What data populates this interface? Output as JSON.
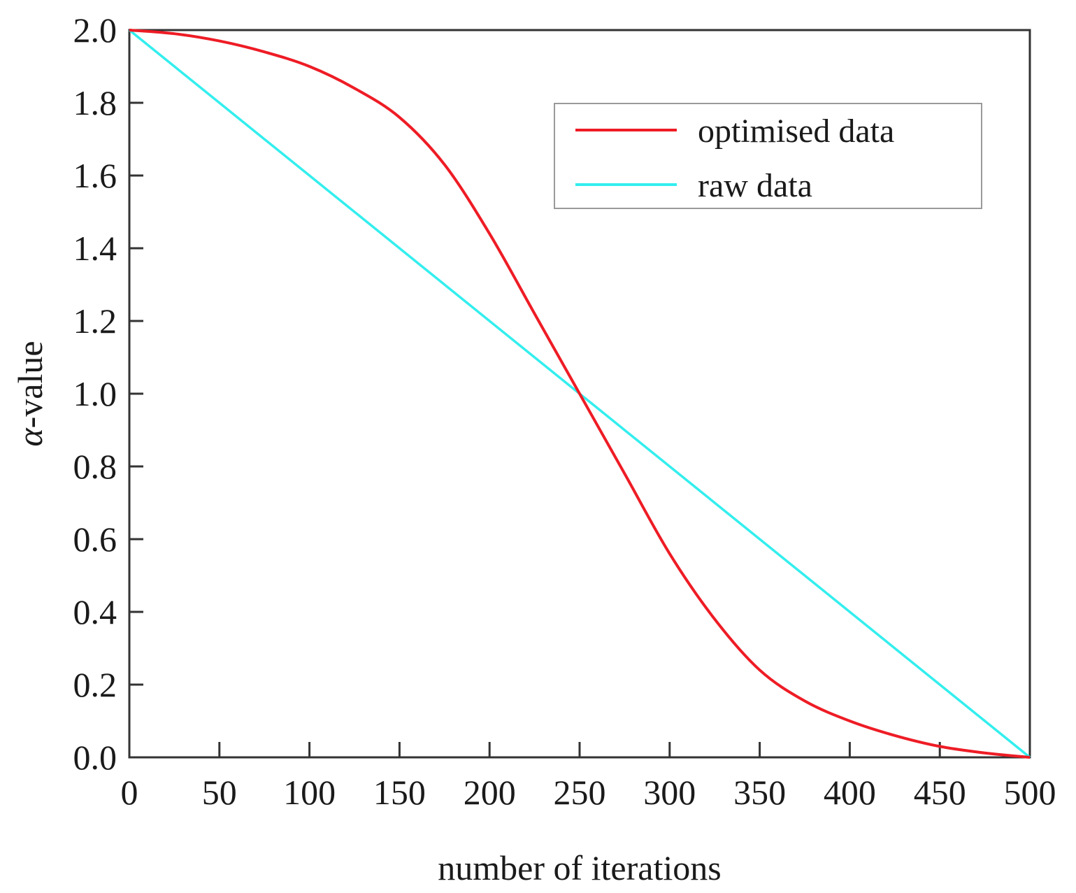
{
  "chart_data": {
    "type": "line",
    "title": "",
    "xlabel": "number of iterations",
    "ylabel_symbol": "α",
    "ylabel_suffix": "-value",
    "xlim": [
      0,
      500
    ],
    "ylim": [
      0,
      2.0
    ],
    "xticks": [
      0,
      50,
      100,
      150,
      200,
      250,
      300,
      350,
      400,
      450,
      500
    ],
    "xtick_labels": [
      "0",
      "50",
      "100",
      "150",
      "200",
      "250",
      "300",
      "350",
      "400",
      "450",
      "500"
    ],
    "yticks": [
      0,
      0.2,
      0.4,
      0.6,
      0.8,
      1.0,
      1.2,
      1.4,
      1.6,
      1.8,
      2.0
    ],
    "ytick_labels": [
      "0.0",
      "0.2",
      "0.4",
      "0.6",
      "0.8",
      "1.0",
      "1.2",
      "1.4",
      "1.6",
      "1.8",
      "2.0"
    ],
    "grid": false,
    "legend_position": "top-right",
    "series": [
      {
        "name": "optimised data",
        "color": "#ee1c25",
        "x": [
          0,
          25,
          50,
          75,
          100,
          125,
          150,
          175,
          200,
          225,
          250,
          275,
          300,
          325,
          350,
          375,
          400,
          425,
          450,
          475,
          500
        ],
        "y": [
          2.0,
          1.99,
          1.97,
          1.94,
          1.9,
          1.84,
          1.76,
          1.63,
          1.44,
          1.22,
          1.0,
          0.78,
          0.56,
          0.38,
          0.24,
          0.155,
          0.1,
          0.06,
          0.03,
          0.012,
          0.0
        ]
      },
      {
        "name": "raw data",
        "color": "#33eeee",
        "x": [
          0,
          500
        ],
        "y": [
          2.0,
          0.0
        ]
      }
    ]
  }
}
